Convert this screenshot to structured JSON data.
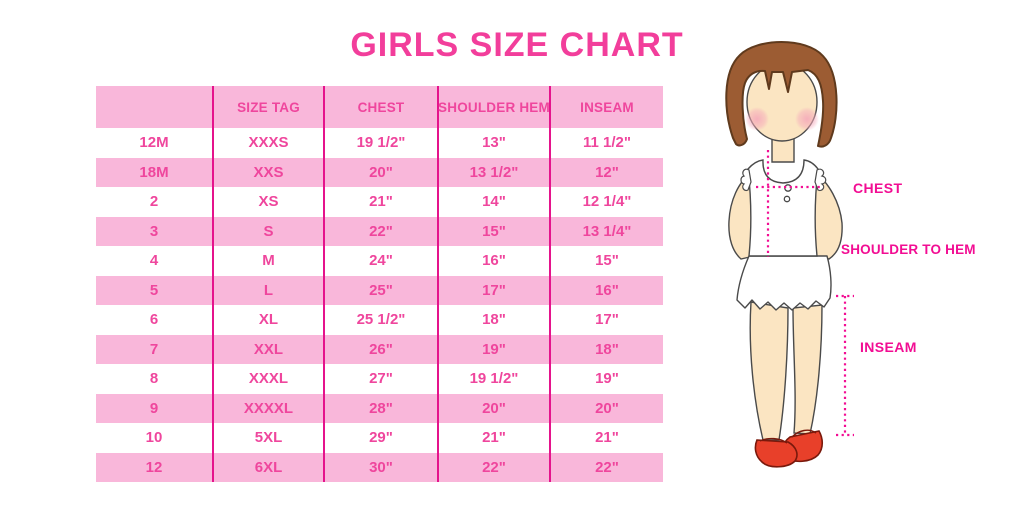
{
  "title": "GIRLS SIZE CHART",
  "chart_data": {
    "type": "table",
    "title": "GIRLS SIZE CHART",
    "headers": [
      "",
      "SIZE TAG",
      "CHEST",
      "SHOULDER HEM",
      "INSEAM"
    ],
    "rows": [
      [
        "12M",
        "XXXS",
        "19 1/2\"",
        "13\"",
        "11 1/2\""
      ],
      [
        "18M",
        "XXS",
        "20\"",
        "13 1/2\"",
        "12\""
      ],
      [
        "2",
        "XS",
        "21\"",
        "14\"",
        "12 1/4\""
      ],
      [
        "3",
        "S",
        "22\"",
        "15\"",
        "13 1/4\""
      ],
      [
        "4",
        "M",
        "24\"",
        "16\"",
        "15\""
      ],
      [
        "5",
        "L",
        "25\"",
        "17\"",
        "16\""
      ],
      [
        "6",
        "XL",
        "25 1/2\"",
        "18\"",
        "17\""
      ],
      [
        "7",
        "XXL",
        "26\"",
        "19\"",
        "18\""
      ],
      [
        "8",
        "XXXL",
        "27\"",
        "19 1/2\"",
        "19\""
      ],
      [
        "9",
        "XXXXL",
        "28\"",
        "20\"",
        "20\""
      ],
      [
        "10",
        "5XL",
        "29\"",
        "21\"",
        "21\""
      ],
      [
        "12",
        "6XL",
        "30\"",
        "22\"",
        "22\""
      ]
    ],
    "row_stripe_pattern": "alternating white/pink starting white",
    "legend_position": "none",
    "grid": "vertical magenta separators only"
  },
  "diagram": {
    "labels": {
      "chest": "CHEST",
      "shoulder_hem": "SHOULDER TO HEM",
      "inseam": "INSEAM"
    }
  },
  "colors": {
    "title_pink": "#F23E9B",
    "row_pink": "#F9B7DA",
    "table_text_pink": "#EF469D",
    "separator_magenta": "#E5138C",
    "measure_magenta": "#F20D93",
    "hair_brown": "#9C5C33",
    "skin": "#FBE5C2",
    "blush": "#F5A9BA",
    "shoe_red": "#E8402A"
  }
}
